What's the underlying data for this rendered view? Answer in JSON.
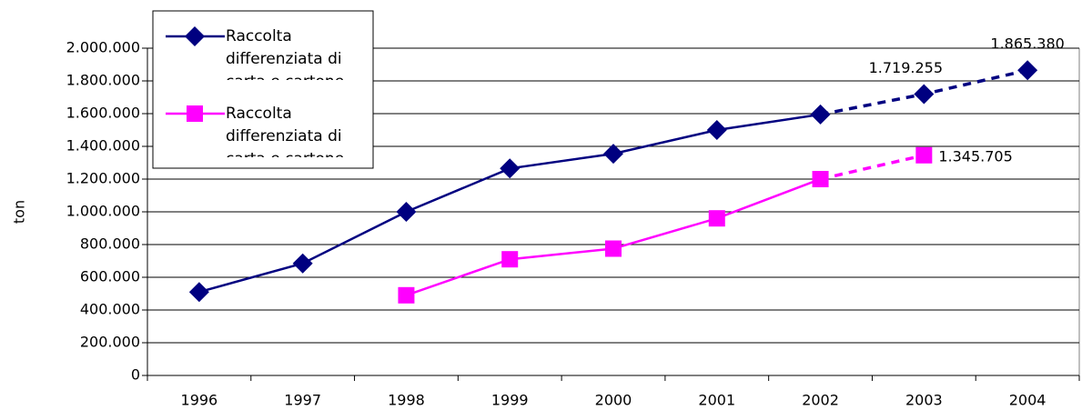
{
  "chart_data": {
    "type": "line",
    "y_label": "ton",
    "categories": [
      "1996",
      "1997",
      "1998",
      "1999",
      "2000",
      "2001",
      "2002",
      "2003",
      "2004"
    ],
    "series": [
      {
        "name": "Raccolta differenziata di carta e cartone",
        "color": "#000080",
        "marker": "diamond",
        "values": [
          510000,
          685000,
          1000000,
          1265000,
          1355000,
          1500000,
          1595000,
          1719255,
          1865380
        ],
        "value_labels": [
          null,
          null,
          null,
          null,
          null,
          null,
          null,
          "1.719.255",
          "1.865.380"
        ]
      },
      {
        "name": "Raccolta differenziata di carta e cartone gestita in convenzione",
        "color": "#ff00ff",
        "marker": "square",
        "values": [
          null,
          null,
          490000,
          710000,
          775000,
          960000,
          1200000,
          1345705,
          null
        ],
        "value_labels": [
          null,
          null,
          null,
          null,
          null,
          null,
          null,
          "1.345.705",
          null
        ]
      }
    ],
    "dashed_from_index": 6,
    "ylim": [
      0,
      2000000
    ],
    "yticks": [
      0,
      {
        "value": 200000,
        "label": "200.000"
      },
      {
        "value": 400000,
        "label": "400.000"
      },
      {
        "value": 600000,
        "label": "600.000"
      },
      {
        "value": 800000,
        "label": "800.000"
      },
      {
        "value": 1000000,
        "label": "1.000.000"
      },
      {
        "value": 1200000,
        "label": "1.200.000"
      },
      {
        "value": 1400000,
        "label": "1.400.000"
      },
      {
        "value": 1600000,
        "label": "1.600.000"
      },
      {
        "value": 1800000,
        "label": "1.800.000"
      },
      {
        "value": 2000000,
        "label": "2.000.000"
      }
    ],
    "grid": true,
    "legend": "upper left"
  }
}
